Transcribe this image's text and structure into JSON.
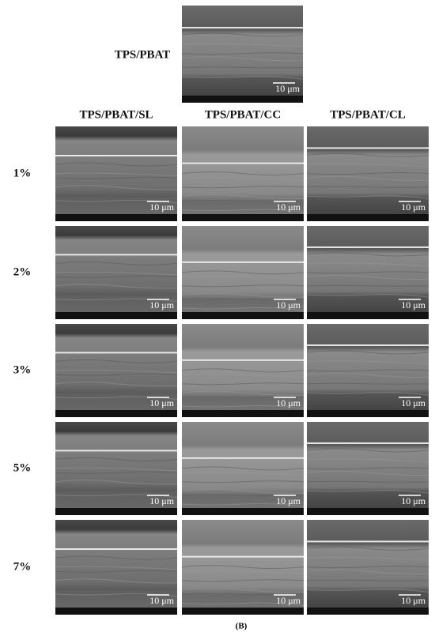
{
  "top_image": {
    "label": "TPS/PBAT"
  },
  "columns": [
    "TPS/PBAT/SL",
    "TPS/PBAT/CC",
    "TPS/PBAT/CL"
  ],
  "rows": [
    "1%",
    "2%",
    "3%",
    "5%",
    "7%"
  ],
  "scale_bar": "10 μm",
  "caption": "(B)"
}
